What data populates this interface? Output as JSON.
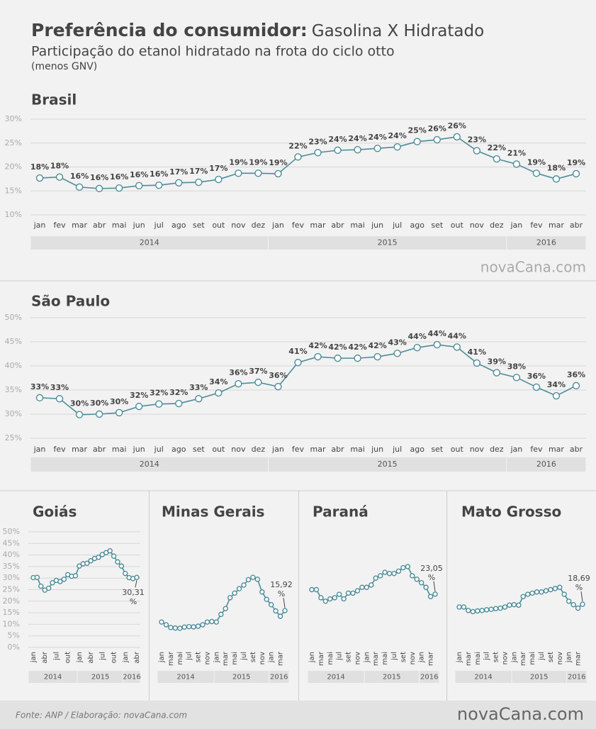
{
  "header": {
    "title": "Preferência do consumidor:",
    "title_rest": "Gasolina X Hidratado",
    "subtitle": "Participação  do etanol hidratado na frota do ciclo otto",
    "note": "(menos GNV)"
  },
  "watermark": "novaCana.com",
  "chart_data": [
    {
      "type": "line",
      "title": "Brasil",
      "color": "#4d8c99",
      "grid": true,
      "categories": [
        "jan",
        "fev",
        "mar",
        "abr",
        "mai",
        "jun",
        "jul",
        "ago",
        "set",
        "out",
        "nov",
        "dez",
        "jan",
        "fev",
        "mar",
        "abr",
        "mai",
        "jun",
        "jul",
        "ago",
        "set",
        "out",
        "nov",
        "dez",
        "jan",
        "fev",
        "mar",
        "abr"
      ],
      "year_labels": [
        "2014",
        "2015",
        "2016"
      ],
      "values": [
        17.7,
        17.9,
        15.8,
        15.5,
        15.6,
        16.1,
        16.2,
        16.7,
        16.8,
        17.4,
        18.7,
        18.7,
        18.6,
        22.1,
        23.0,
        23.5,
        23.6,
        23.9,
        24.2,
        25.3,
        25.7,
        26.3,
        23.4,
        21.7,
        20.6,
        18.7,
        17.5,
        18.6
      ],
      "value_labels": [
        "18%",
        "18%",
        "16%",
        "16%",
        "16%",
        "16%",
        "16%",
        "17%",
        "17%",
        "17%",
        "19%",
        "19%",
        "19%",
        "22%",
        "23%",
        "24%",
        "24%",
        "24%",
        "24%",
        "25%",
        "26%",
        "26%",
        "23%",
        "22%",
        "21%",
        "19%",
        "18%",
        "19%"
      ],
      "ylim": [
        10,
        30
      ],
      "yticks": [
        {
          "value": 10,
          "label": "10%"
        },
        {
          "value": 15,
          "label": "15%"
        },
        {
          "value": 20,
          "label": "20%"
        },
        {
          "value": 25,
          "label": "25%"
        },
        {
          "value": 30,
          "label": "30%"
        }
      ]
    },
    {
      "type": "line",
      "title": "São Paulo",
      "color": "#4d8c99",
      "grid": true,
      "categories": [
        "jan",
        "fev",
        "mar",
        "abr",
        "mai",
        "jun",
        "jul",
        "ago",
        "set",
        "out",
        "nov",
        "dez",
        "jan",
        "fev",
        "mar",
        "abr",
        "mai",
        "jun",
        "jul",
        "ago",
        "set",
        "out",
        "nov",
        "dez",
        "jan",
        "fev",
        "mar",
        "abr"
      ],
      "year_labels": [
        "2014",
        "2015",
        "2016"
      ],
      "values": [
        33.4,
        33.2,
        29.9,
        30.0,
        30.3,
        31.6,
        32.1,
        32.2,
        33.2,
        34.4,
        36.3,
        36.6,
        35.7,
        40.7,
        41.9,
        41.6,
        41.6,
        41.9,
        42.6,
        43.8,
        44.4,
        43.9,
        40.6,
        38.6,
        37.6,
        35.6,
        33.8,
        35.9
      ],
      "value_labels": [
        "33%",
        "33%",
        "30%",
        "30%",
        "30%",
        "32%",
        "32%",
        "32%",
        "33%",
        "34%",
        "36%",
        "37%",
        "36%",
        "41%",
        "42%",
        "42%",
        "42%",
        "42%",
        "43%",
        "44%",
        "44%",
        "44%",
        "41%",
        "39%",
        "38%",
        "36%",
        "34%",
        "36%"
      ],
      "ylim": [
        25,
        50
      ],
      "yticks": [
        {
          "value": 25,
          "label": "25%"
        },
        {
          "value": 30,
          "label": "30%"
        },
        {
          "value": 35,
          "label": "35%"
        },
        {
          "value": 40,
          "label": "40%"
        },
        {
          "value": 45,
          "label": "45%"
        },
        {
          "value": 50,
          "label": "50%"
        }
      ]
    },
    {
      "type": "line",
      "title": "Goiás",
      "color": "#4d8c99",
      "grid": true,
      "categories": [
        "jan",
        null,
        null,
        "abr",
        null,
        null,
        "jul",
        null,
        null,
        "out",
        null,
        null,
        "jan",
        null,
        null,
        "abr",
        null,
        null,
        "jul",
        null,
        null,
        "out",
        null,
        null,
        "jan",
        null,
        null,
        "abr"
      ],
      "year_labels": [
        "2014",
        "2015",
        "2016"
      ],
      "values": [
        30.2,
        30.3,
        26.5,
        24.8,
        25.6,
        28.0,
        29.0,
        28.5,
        29.5,
        31.5,
        30.8,
        31.0,
        35.2,
        36.2,
        36.4,
        37.5,
        38.5,
        39.0,
        40.2,
        41.0,
        41.8,
        39.5,
        37.0,
        35.2,
        32.0,
        30.2,
        29.8,
        30.31
      ],
      "value_labels": [
        null,
        null,
        null,
        null,
        null,
        null,
        null,
        null,
        null,
        null,
        null,
        null,
        null,
        null,
        null,
        null,
        null,
        null,
        null,
        null,
        null,
        null,
        null,
        null,
        null,
        null,
        null,
        "30,31 %"
      ],
      "ylim": [
        0,
        50
      ],
      "yticks": [
        {
          "value": 0,
          "label": "0%"
        },
        {
          "value": 5,
          "label": "5%"
        },
        {
          "value": 10,
          "label": "10%"
        },
        {
          "value": 15,
          "label": "15%"
        },
        {
          "value": 20,
          "label": "20%"
        },
        {
          "value": 25,
          "label": "25%"
        },
        {
          "value": 30,
          "label": "30%"
        },
        {
          "value": 35,
          "label": "35%"
        },
        {
          "value": 40,
          "label": "40%"
        },
        {
          "value": 45,
          "label": "45%"
        },
        {
          "value": 50,
          "label": "50%"
        }
      ]
    },
    {
      "type": "line",
      "title": "Minas Gerais",
      "color": "#4d8c99",
      "categories": [
        "jan",
        null,
        "mar",
        null,
        "mai",
        null,
        "jul",
        null,
        "set",
        null,
        "nov",
        null,
        "jan",
        null,
        "mar",
        null,
        "mai",
        null,
        "jul",
        null,
        "set",
        null,
        "nov",
        null,
        "jan",
        null,
        "mar",
        null
      ],
      "year_labels": [
        "2014",
        "2015",
        "2016"
      ],
      "values": [
        11.0,
        9.8,
        8.6,
        8.4,
        8.3,
        8.8,
        9.0,
        8.9,
        9.2,
        9.8,
        11.0,
        11.2,
        11.0,
        14.3,
        16.8,
        21.5,
        23.5,
        25.4,
        27.0,
        29.3,
        30.3,
        29.5,
        24.0,
        20.8,
        18.5,
        15.8,
        13.5,
        15.92
      ],
      "value_labels": [
        null,
        null,
        null,
        null,
        null,
        null,
        null,
        null,
        null,
        null,
        null,
        null,
        null,
        null,
        null,
        null,
        null,
        null,
        null,
        null,
        null,
        null,
        null,
        null,
        null,
        null,
        null,
        "15,92 %"
      ],
      "ylim": [
        0,
        50
      ]
    },
    {
      "type": "line",
      "title": "Paraná",
      "color": "#4d8c99",
      "categories": [
        "jan",
        null,
        "mar",
        null,
        "mai",
        null,
        "jul",
        null,
        "set",
        null,
        "nov",
        null,
        "jan",
        null,
        "mar",
        null,
        "mai",
        null,
        "jul",
        null,
        "set",
        null,
        "nov",
        null,
        "jan",
        null,
        "mar",
        null
      ],
      "year_labels": [
        "2014",
        "2015",
        "2016"
      ],
      "values": [
        25.0,
        25.0,
        21.5,
        20.0,
        21.0,
        21.5,
        23.0,
        21.0,
        23.5,
        23.5,
        24.5,
        26.0,
        26.0,
        27.0,
        30.0,
        31.0,
        32.5,
        32.0,
        32.0,
        33.0,
        34.5,
        35.0,
        31.0,
        29.5,
        28.0,
        26.0,
        22.0,
        23.05
      ],
      "value_labels": [
        null,
        null,
        null,
        null,
        null,
        null,
        null,
        null,
        null,
        null,
        null,
        null,
        null,
        null,
        null,
        null,
        null,
        null,
        null,
        null,
        null,
        null,
        null,
        null,
        null,
        null,
        null,
        "23,05 %"
      ],
      "ylim": [
        0,
        50
      ]
    },
    {
      "type": "line",
      "title": "Mato Grosso",
      "color": "#4d8c99",
      "categories": [
        "jan",
        null,
        "mar",
        null,
        "mai",
        null,
        "jul",
        null,
        "set",
        null,
        "nov",
        null,
        "jan",
        null,
        "mar",
        null,
        "mai",
        null,
        "jul",
        null,
        "set",
        null,
        "nov",
        null,
        "jan",
        null,
        "mar",
        null
      ],
      "year_labels": [
        "2014",
        "2015",
        "2016"
      ],
      "values": [
        17.5,
        17.5,
        16.0,
        15.5,
        15.8,
        16.0,
        16.3,
        16.5,
        16.8,
        17.0,
        17.5,
        18.3,
        18.5,
        18.3,
        22.0,
        23.0,
        23.5,
        24.0,
        24.0,
        24.5,
        25.0,
        25.5,
        26.0,
        23.0,
        20.0,
        18.5,
        17.0,
        18.69
      ],
      "value_labels": [
        null,
        null,
        null,
        null,
        null,
        null,
        null,
        null,
        null,
        null,
        null,
        null,
        null,
        null,
        null,
        null,
        null,
        null,
        null,
        null,
        null,
        null,
        null,
        null,
        null,
        null,
        null,
        "18,69 %"
      ],
      "ylim": [
        0,
        50
      ]
    }
  ],
  "footer": {
    "source": "Fonte: ANP / Elaboração: novaCana.com",
    "logo": "novaCana.com"
  }
}
